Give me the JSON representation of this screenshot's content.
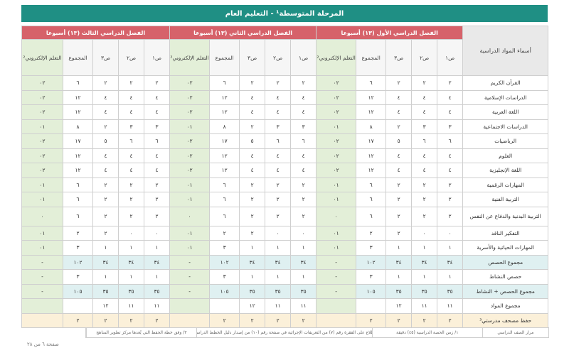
{
  "title": "المرحلة المتوسطة¹ - التعليم العام",
  "subjects_header": "أسماء المواد الدراسية",
  "semesters": [
    "الفصل الدراسي الأول (١٣) أسبوعا",
    "الفصل الدراسي الثاني (١٣) أسبوعا",
    "الفصل الدراسي الثالث (١٣) أسبوعا"
  ],
  "columns": [
    "ص١",
    "ص٢",
    "ص٣",
    "المجموع",
    "التعلم الإلكتروني²"
  ],
  "rows": [
    {
      "name": "القرآن الكريم",
      "cells": [
        "٢",
        "٢",
        "٢",
        "٦",
        "٠٢",
        "٢",
        "٢",
        "٢",
        "٦",
        "٠٢",
        "٢",
        "٢",
        "٢",
        "٦",
        "٠٢"
      ]
    },
    {
      "name": "الدراسات الإسلامية",
      "cells": [
        "٤",
        "٤",
        "٤",
        "١٢",
        "٠٢",
        "٤",
        "٤",
        "٤",
        "١٢",
        "٠٢",
        "٤",
        "٤",
        "٤",
        "١٢",
        "٠٢"
      ]
    },
    {
      "name": "اللغة العربية",
      "cells": [
        "٤",
        "٤",
        "٤",
        "١٢",
        "٠٢",
        "٤",
        "٤",
        "٤",
        "١٢",
        "٠٢",
        "٤",
        "٤",
        "٤",
        "١٢",
        "٠٢"
      ]
    },
    {
      "name": "الدراسات الاجتماعية",
      "cells": [
        "٣",
        "٣",
        "٢",
        "٨",
        "٠١",
        "٣",
        "٣",
        "٢",
        "٨",
        "٠١",
        "٣",
        "٣",
        "٢",
        "٨",
        "٠١"
      ]
    },
    {
      "name": "الرياضيات",
      "cells": [
        "٦",
        "٦",
        "٥",
        "١٧",
        "٠٢",
        "٦",
        "٦",
        "٥",
        "١٧",
        "٠٢",
        "٦",
        "٦",
        "٥",
        "١٧",
        "٠٢"
      ]
    },
    {
      "name": "العلوم",
      "cells": [
        "٤",
        "٤",
        "٤",
        "١٢",
        "٠٢",
        "٤",
        "٤",
        "٤",
        "١٢",
        "٠٢",
        "٤",
        "٤",
        "٤",
        "١٢",
        "٠٢"
      ]
    },
    {
      "name": "اللغة الإنجليزية",
      "cells": [
        "٤",
        "٤",
        "٤",
        "١٢",
        "٠٢",
        "٤",
        "٤",
        "٤",
        "١٢",
        "٠٢",
        "٤",
        "٤",
        "٤",
        "١٢",
        "٠٢"
      ]
    },
    {
      "name": "المهارات الرقمية",
      "cells": [
        "٢",
        "٢",
        "٢",
        "٦",
        "٠١",
        "٢",
        "٢",
        "٢",
        "٦",
        "٠١",
        "٢",
        "٢",
        "٢",
        "٦",
        "٠١"
      ]
    },
    {
      "name": "التربية الفنية",
      "cells": [
        "٢",
        "٢",
        "٢",
        "٦",
        "٠١",
        "٢",
        "٢",
        "٢",
        "٦",
        "٠١",
        "٢",
        "٢",
        "٢",
        "٦",
        "٠١"
      ]
    },
    {
      "name": "التربية البدنية والدفاع عن النفس",
      "tall": true,
      "cells": [
        "٢",
        "٢",
        "٢",
        "٦",
        "٠",
        "٢",
        "٢",
        "٢",
        "٦",
        "٠",
        "٢",
        "٢",
        "٢",
        "٦",
        "٠"
      ]
    },
    {
      "name": "التفكير الناقد",
      "cells": [
        "٠",
        "٠",
        "٢",
        "٢",
        "٠١",
        "٠",
        "٠",
        "٢",
        "٢",
        "٠١",
        "٠",
        "٠",
        "٢",
        "٢",
        "٠١"
      ]
    },
    {
      "name": "المهارات الحياتية والأسرية",
      "cells": [
        "١",
        "١",
        "١",
        "٣",
        "٠١",
        "١",
        "١",
        "١",
        "٣",
        "٠١",
        "١",
        "١",
        "١",
        "٣",
        "٠١"
      ]
    },
    {
      "name": "مجموع الحصص",
      "type": "total",
      "cells": [
        "٣٤",
        "٣٤",
        "٣٤",
        "١٠٢",
        "-",
        "٣٤",
        "٣٤",
        "٣٤",
        "١٠٢",
        "-",
        "٣٤",
        "٣٤",
        "٣٤",
        "١٠٢",
        "-"
      ]
    },
    {
      "name": "حصص النشاط",
      "cells": [
        "١",
        "١",
        "١",
        "٣",
        "-",
        "١",
        "١",
        "١",
        "٣",
        "-",
        "١",
        "١",
        "١",
        "٣",
        "-"
      ]
    },
    {
      "name": "مجموع الحصص + النشاط",
      "type": "total",
      "cells": [
        "٣٥",
        "٣٥",
        "٣٥",
        "١٠٥",
        "-",
        "٣٥",
        "٣٥",
        "٣٥",
        "١٠٥",
        "-",
        "٣٥",
        "٣٥",
        "٣٥",
        "١٠٥",
        "-"
      ]
    },
    {
      "name": "مجموع المواد",
      "cells": [
        "١١",
        "١١",
        "١٢",
        "",
        "",
        "١١",
        "١١",
        "١٢",
        "",
        "",
        "١١",
        "١١",
        "١٢",
        "",
        ""
      ]
    },
    {
      "name": "حفظ مصحف مدرستي³",
      "type": "hifz",
      "cells": [
        "٢",
        "٢",
        "٢",
        "٢",
        "",
        "٢",
        "٢",
        "٢",
        "٢",
        "",
        "٢",
        "٢",
        "٢",
        "٢",
        ""
      ]
    }
  ],
  "footer_notes": [
    "مرار الصف الدراسي",
    "١/ زمن الحصة الدراسية (٤٥) دقيقة",
    "٢/ يلزم الاطلاع على الفقرة رقم (٧) من التعريفات الإجرائية في صفحة رقم (١٠) من إصدار دليل الخطط الدراسية المطورة",
    "٣/ وفق خطة الحفظ التي يُعدها مركز تطوير المناهج"
  ],
  "page_number": "صفحة ٦ من ٢٨"
}
